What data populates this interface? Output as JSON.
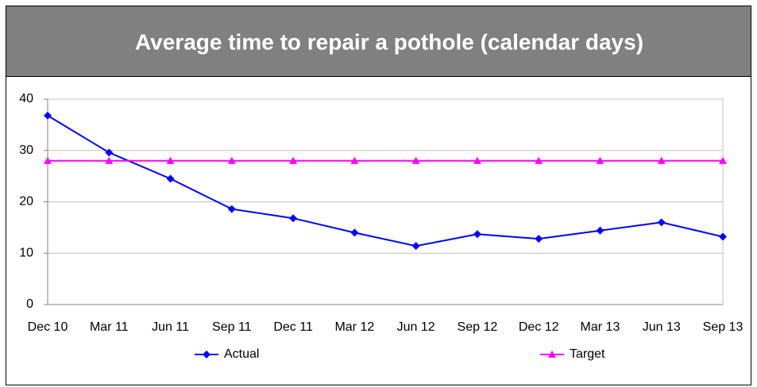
{
  "chart_data": {
    "type": "line",
    "title": "Average time to repair a pothole (calendar days)",
    "categories": [
      "Dec 10",
      "Mar 11",
      "Jun 11",
      "Sep 11",
      "Dec 11",
      "Mar 12",
      "Jun 12",
      "Sep 12",
      "Dec 12",
      "Mar 13",
      "Jun 13",
      "Sep 13"
    ],
    "series": [
      {
        "name": "Actual",
        "color": "#0000ff",
        "marker": "diamond",
        "values": [
          36.8,
          29.6,
          24.5,
          18.6,
          16.8,
          14.0,
          11.4,
          13.7,
          12.8,
          14.4,
          16.0,
          13.2
        ]
      },
      {
        "name": "Target",
        "color": "#ff00ff",
        "marker": "triangle",
        "values": [
          28,
          28,
          28,
          28,
          28,
          28,
          28,
          28,
          28,
          28,
          28,
          28
        ]
      }
    ],
    "ylim": [
      0,
      40
    ],
    "yticks": [
      0,
      10,
      20,
      30,
      40
    ],
    "grid": true,
    "legend": "bottom"
  }
}
